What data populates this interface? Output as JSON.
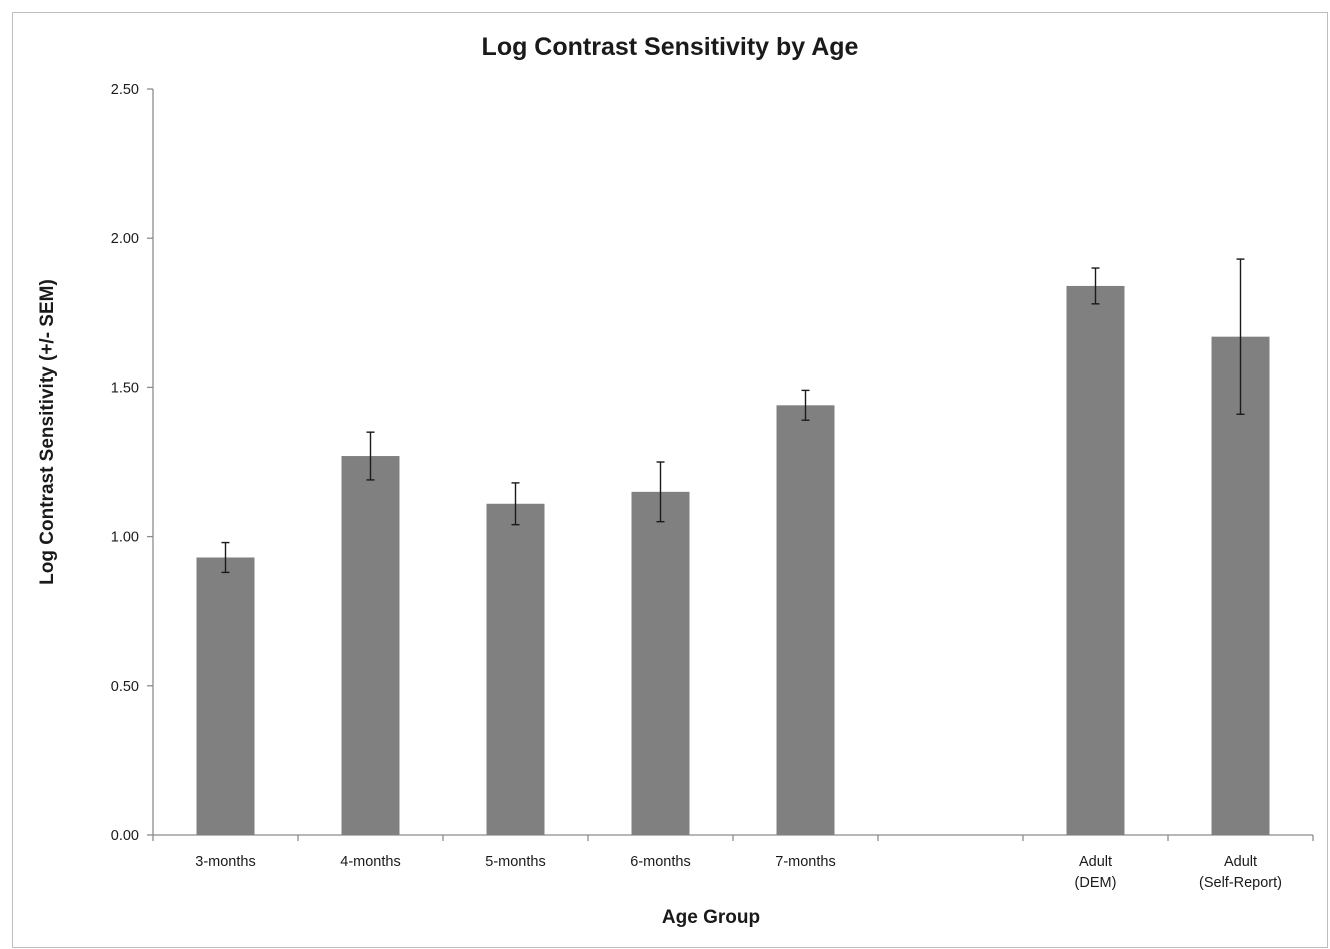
{
  "chart_data": {
    "type": "bar",
    "title": "Log Contrast Sensitivity by Age",
    "xlabel": "Age Group",
    "ylabel": "Log Contrast Sensitivity (+/- SEM)",
    "ylim": [
      0,
      2.5
    ],
    "yticks": [
      "0.00",
      "0.50",
      "1.00",
      "1.50",
      "2.00",
      "2.50"
    ],
    "grid": false,
    "legend": "none",
    "bar_color": "#808080",
    "categories": [
      [
        "3-months"
      ],
      [
        "4-months"
      ],
      [
        "5-months"
      ],
      [
        "6-months"
      ],
      [
        "7-months"
      ],
      [
        ""
      ],
      [
        "Adult",
        "(DEM)"
      ],
      [
        "Adult",
        "(Self-Report)"
      ]
    ],
    "values": [
      0.93,
      1.27,
      1.11,
      1.15,
      1.44,
      null,
      1.84,
      1.67
    ],
    "error_low": [
      0.88,
      1.19,
      1.04,
      1.05,
      1.39,
      null,
      1.78,
      1.41
    ],
    "error_high": [
      0.98,
      1.35,
      1.18,
      1.25,
      1.49,
      null,
      1.9,
      1.93
    ]
  }
}
